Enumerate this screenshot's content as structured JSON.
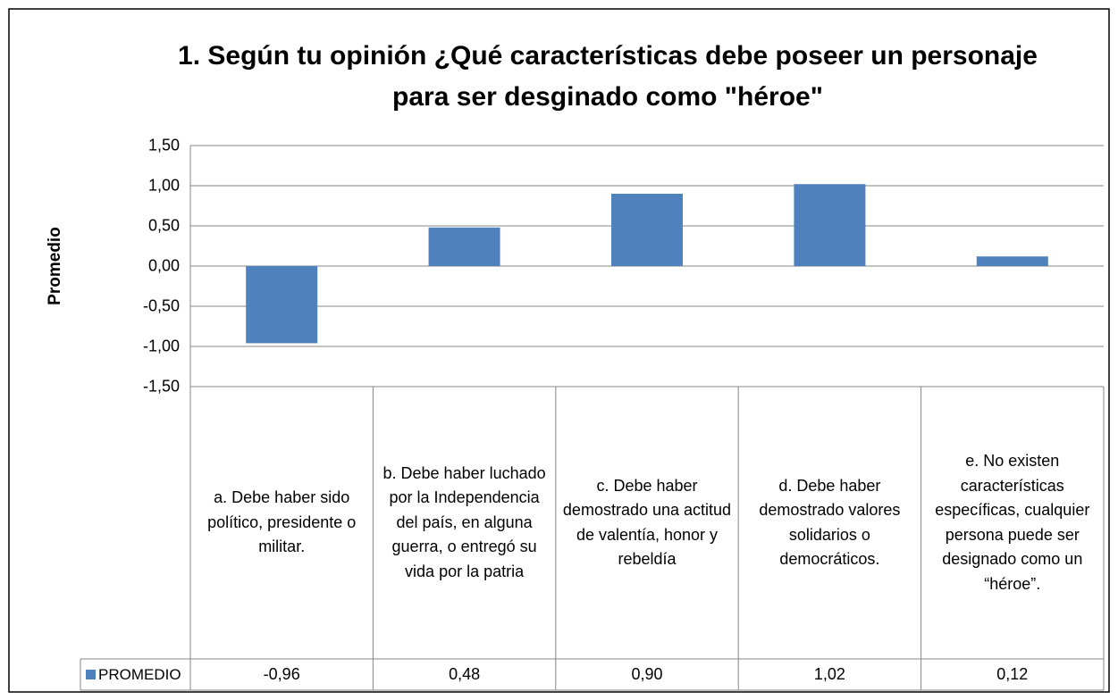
{
  "chart_data": {
    "type": "bar",
    "title": "1. Según tu opinión ¿Qué características debe poseer un personaje para ser desginado como \"héroe\"",
    "y_label": "Promedio",
    "categories": [
      "a. Debe haber sido político, presidente o militar.",
      "b. Debe haber luchado por la Independencia del país, en alguna guerra, o entregó su vida por la patria",
      "c. Debe haber demostrado una actitud de valentía, honor y rebeldía",
      "d. Debe haber demostrado valores solidarios o democráticos.",
      "e. No existen características específicas, cualquier persona puede ser designado como un “héroe”."
    ],
    "series": [
      {
        "name": "PROMEDIO",
        "color": "#4f81bd",
        "values": [
          -0.96,
          0.48,
          0.9,
          1.02,
          0.12
        ],
        "value_labels": [
          "-0,96",
          "0,48",
          "0,90",
          "1,02",
          "0,12"
        ]
      }
    ],
    "ylim": [
      -1.5,
      1.5
    ],
    "yticks": [
      {
        "value": 1.5,
        "label": "1,50"
      },
      {
        "value": 1.0,
        "label": "1,00"
      },
      {
        "value": 0.5,
        "label": "0,50"
      },
      {
        "value": 0.0,
        "label": "0,00"
      },
      {
        "value": -0.5,
        "label": "-0,50"
      },
      {
        "value": -1.0,
        "label": "-1,00"
      },
      {
        "value": -1.5,
        "label": "-1,50"
      }
    ],
    "grid": true,
    "data_table": true
  }
}
